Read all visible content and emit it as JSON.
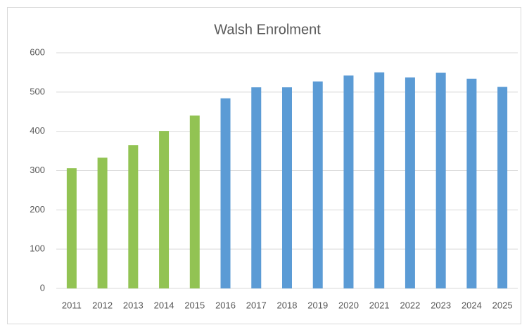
{
  "chart_data": {
    "type": "bar",
    "title": "Walsh Enrolment",
    "categories": [
      "2011",
      "2012",
      "2013",
      "2014",
      "2015",
      "2016",
      "2017",
      "2018",
      "2019",
      "2020",
      "2021",
      "2022",
      "2023",
      "2024",
      "2025"
    ],
    "values": [
      306,
      333,
      365,
      401,
      440,
      484,
      512,
      512,
      527,
      542,
      550,
      537,
      549,
      534,
      513
    ],
    "colors": [
      "#92c353",
      "#92c353",
      "#92c353",
      "#92c353",
      "#92c353",
      "#5b9bd5",
      "#5b9bd5",
      "#5b9bd5",
      "#5b9bd5",
      "#5b9bd5",
      "#5b9bd5",
      "#5b9bd5",
      "#5b9bd5",
      "#5b9bd5",
      "#5b9bd5"
    ],
    "ylim": [
      0,
      600
    ],
    "yticks": [
      0,
      100,
      200,
      300,
      400,
      500,
      600
    ],
    "grid": true
  }
}
